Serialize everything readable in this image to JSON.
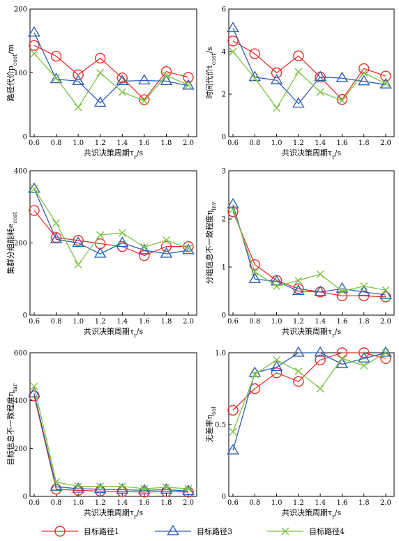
{
  "colors": {
    "path1": "#e8302a",
    "path3": "#2f5fb0",
    "path4": "#7cc242",
    "axis": "#000000"
  },
  "x": [
    0.6,
    0.8,
    1.0,
    1.2,
    1.4,
    1.6,
    1.8,
    2.0
  ],
  "x_ticks": [
    "0.6",
    "0.8",
    "1.0",
    "1.2",
    "1.4",
    "1.6",
    "1.8",
    "2.0"
  ],
  "xlabel": {
    "main": "共识决策周期τ",
    "sub": "r",
    "tail": "/s"
  },
  "legend": [
    {
      "name": "目标路径1",
      "color": "#e8302a",
      "marker": "circle"
    },
    {
      "name": "目标路径3",
      "color": "#2f5fb0",
      "marker": "triangle"
    },
    {
      "name": "目标路径4",
      "color": "#7cc242",
      "marker": "cross"
    }
  ],
  "chart_data": [
    {
      "type": "line",
      "ylabel": {
        "main": "路径代价p",
        "sub": "cost",
        "tail": "/m"
      },
      "ylim": [
        0,
        200
      ],
      "y_ticks": [
        "0",
        "100",
        "200"
      ],
      "series": [
        {
          "name": "目标路径1",
          "values": [
            143,
            126,
            97,
            123,
            92,
            58,
            102,
            93
          ]
        },
        {
          "name": "目标路径3",
          "values": [
            163,
            90,
            87,
            53,
            87,
            88,
            87,
            80
          ]
        },
        {
          "name": "目标路径4",
          "values": [
            130,
            92,
            46,
            100,
            70,
            56,
            96,
            81
          ]
        }
      ]
    },
    {
      "type": "line",
      "ylabel": {
        "main": "时间代价t",
        "sub": "cost",
        "tail": "/s"
      },
      "ylim": [
        0,
        6
      ],
      "y_ticks": [
        "0",
        "2",
        "4",
        "6"
      ],
      "series": [
        {
          "name": "目标路径1",
          "values": [
            4.5,
            3.9,
            3.0,
            3.8,
            2.8,
            1.75,
            3.2,
            2.85
          ]
        },
        {
          "name": "目标路径3",
          "values": [
            5.1,
            2.8,
            2.65,
            1.55,
            2.8,
            2.75,
            2.6,
            2.45
          ]
        },
        {
          "name": "目标路径4",
          "values": [
            4.0,
            2.75,
            1.35,
            3.05,
            2.1,
            1.7,
            3.0,
            2.5
          ]
        }
      ]
    },
    {
      "type": "line",
      "ylabel": {
        "main": "集群分组能耗e",
        "sub": "cost",
        "tail": ""
      },
      "ylim": [
        0,
        400
      ],
      "y_ticks": [
        "0",
        "200",
        "400"
      ],
      "series": [
        {
          "name": "目标路径1",
          "values": [
            290,
            215,
            207,
            198,
            190,
            165,
            190,
            190
          ]
        },
        {
          "name": "目标路径3",
          "values": [
            350,
            210,
            200,
            170,
            200,
            180,
            170,
            180
          ]
        },
        {
          "name": "目标路径4",
          "values": [
            350,
            255,
            140,
            222,
            228,
            188,
            208,
            185
          ]
        }
      ]
    },
    {
      "type": "line",
      "ylabel": {
        "main": "分组信息不一致程度η",
        "sub": "inv",
        "tail": ""
      },
      "ylim": [
        0,
        3
      ],
      "y_ticks": [
        "0",
        "1",
        "2",
        "3"
      ],
      "series": [
        {
          "name": "目标路径1",
          "values": [
            2.15,
            1.05,
            0.72,
            0.55,
            0.48,
            0.4,
            0.4,
            0.38
          ]
        },
        {
          "name": "目标路径3",
          "values": [
            2.3,
            0.75,
            0.7,
            0.5,
            0.48,
            0.55,
            0.48,
            0.42
          ]
        },
        {
          "name": "目标路径4",
          "values": [
            2.2,
            0.9,
            0.6,
            0.72,
            0.85,
            0.5,
            0.6,
            0.52
          ]
        }
      ]
    },
    {
      "type": "line",
      "ylabel": {
        "main": "目标信息不一致程度η",
        "sub": "tar",
        "tail": ""
      },
      "ylim": [
        0,
        600
      ],
      "y_ticks": [
        "0",
        "200",
        "400",
        "600"
      ],
      "series": [
        {
          "name": "目标路径1",
          "values": [
            420,
            30,
            25,
            22,
            20,
            18,
            20,
            18
          ]
        },
        {
          "name": "目标路径3",
          "values": [
            430,
            40,
            32,
            30,
            28,
            25,
            28,
            22
          ]
        },
        {
          "name": "目标路径4",
          "values": [
            460,
            60,
            42,
            42,
            42,
            32,
            38,
            32
          ]
        }
      ]
    },
    {
      "type": "line",
      "ylabel": {
        "main": "无差率η",
        "sub": "sol",
        "tail": ""
      },
      "ylim": [
        0,
        1.0
      ],
      "y_ticks": [
        "0",
        "0.5",
        "1.0"
      ],
      "series": [
        {
          "name": "目标路径1",
          "values": [
            0.6,
            0.75,
            0.86,
            0.8,
            0.95,
            1.0,
            1.0,
            0.96
          ]
        },
        {
          "name": "目标路径3",
          "values": [
            0.32,
            0.86,
            0.9,
            1.0,
            1.0,
            0.92,
            0.96,
            1.0
          ]
        },
        {
          "name": "目标路径4",
          "values": [
            0.45,
            0.85,
            0.95,
            0.87,
            0.75,
            0.96,
            0.91,
            1.0
          ]
        }
      ]
    }
  ]
}
